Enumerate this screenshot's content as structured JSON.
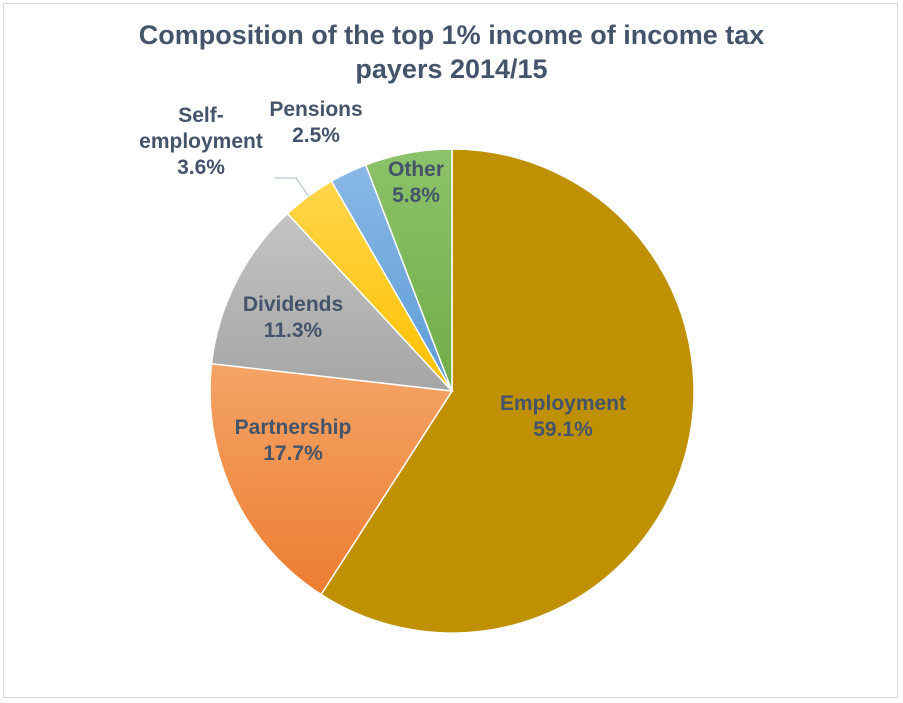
{
  "chart_data": {
    "type": "pie",
    "title_lines": [
      "Composition of the top 1% income of income tax",
      "payers 2014/15"
    ],
    "slices": [
      {
        "name": "Employment",
        "value": 59.1,
        "value_label": "59.1%",
        "color": "#bf9000",
        "color_light": "#c99a00"
      },
      {
        "name": "Partnership",
        "value": 17.7,
        "value_label": "17.7%",
        "color": "#ed7d31",
        "color_light": "#f4a467"
      },
      {
        "name": "Dividends",
        "value": 11.3,
        "value_label": "11.3%",
        "color": "#a5a5a5",
        "color_light": "#c4c4c4"
      },
      {
        "name": "Self-employment",
        "name_lines": [
          "Self-",
          "employment"
        ],
        "value": 3.6,
        "value_label": "3.6%",
        "color": "#ffc000",
        "color_light": "#ffd54a"
      },
      {
        "name": "Pensions",
        "value": 2.5,
        "value_label": "2.5%",
        "color": "#5b9bd5",
        "color_light": "#8ab8e6"
      },
      {
        "name": "Other",
        "value": 5.8,
        "value_label": "5.8%",
        "color": "#70ad47",
        "color_light": "#8cc26a"
      }
    ],
    "start_angle_deg": 0,
    "direction": "clockwise",
    "legend": "none"
  }
}
